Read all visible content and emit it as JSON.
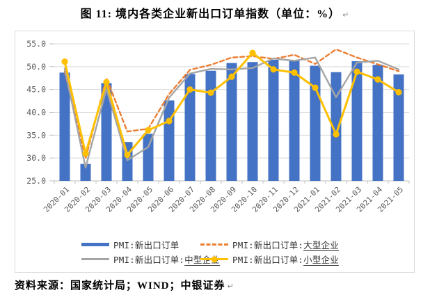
{
  "title": {
    "text": "图 11: 境内各类企业新出口订单指数（单位：%）",
    "pilcrow": "↵"
  },
  "footer": {
    "text": "资料来源：国家统计局；WIND；中银证券",
    "pilcrow": "↵"
  },
  "legend": {
    "items": [
      {
        "prefix": "PMI:新出口订单",
        "underlined": "",
        "swatch": "bar"
      },
      {
        "prefix": "PMI:新出口订单:",
        "underlined": "大型企业",
        "swatch": "dash"
      },
      {
        "prefix": "PMI:新出口订单:",
        "underlined": "中型企业",
        "swatch": "line"
      },
      {
        "prefix": "PMI:新出口订单:",
        "underlined": "小型企业",
        "swatch": "line-marker"
      }
    ]
  },
  "colors": {
    "bar": "#4472C4",
    "large": "#ED7D31",
    "medium": "#A5A5A5",
    "small": "#FFC000",
    "grid": "#D9D9D9",
    "axis": "#BFBFBF",
    "tick_label": "#595959",
    "frame_border": "#D9D9D9"
  },
  "chart_data": {
    "type": "bar",
    "title": "图 11: 境内各类企业新出口订单指数（单位：%）",
    "xlabel": "",
    "ylabel": "",
    "ylim": [
      25.0,
      55.0
    ],
    "ytick_step": 5.0,
    "ytick_labels": [
      "55.0",
      "50.0",
      "45.0",
      "40.0",
      "35.0",
      "30.0",
      "25.0"
    ],
    "grid": true,
    "legend_position": "bottom",
    "categories": [
      "2020-01",
      "2020-02",
      "2020-03",
      "2020-04",
      "2020-05",
      "2020-06",
      "2020-07",
      "2020-08",
      "2020-09",
      "2020-10",
      "2020-11",
      "2020-12",
      "2021-01",
      "2021-02",
      "2021-03",
      "2021-04",
      "2021-05"
    ],
    "series": [
      {
        "name": "PMI:新出口订单",
        "type": "bar",
        "color": "#4472C4",
        "values": [
          48.7,
          28.7,
          46.4,
          33.5,
          35.3,
          42.6,
          48.4,
          49.1,
          50.8,
          51.0,
          51.5,
          51.3,
          50.2,
          48.8,
          51.2,
          50.4,
          48.3
        ]
      },
      {
        "name": "PMI:新出口订单:大型企业",
        "type": "line",
        "style": "dashed",
        "color": "#ED7D31",
        "values": [
          49.0,
          29.9,
          47.5,
          35.8,
          36.4,
          44.0,
          49.3,
          50.4,
          52.0,
          52.3,
          51.7,
          52.6,
          50.6,
          53.8,
          52.0,
          50.5,
          49.0
        ]
      },
      {
        "name": "PMI:新出口订单:中型企业",
        "type": "line",
        "style": "solid",
        "color": "#A5A5A5",
        "values": [
          49.6,
          27.9,
          45.2,
          29.5,
          32.4,
          43.2,
          48.5,
          49.5,
          49.4,
          49.7,
          51.8,
          51.3,
          52.0,
          43.3,
          50.9,
          51.3,
          49.4
        ]
      },
      {
        "name": "PMI:新出口订单:小型企业",
        "type": "line",
        "style": "solid",
        "marker": "circle",
        "color": "#FFC000",
        "values": [
          51.1,
          31.0,
          46.6,
          30.7,
          36.1,
          38.1,
          45.0,
          44.3,
          47.8,
          53.0,
          49.4,
          48.7,
          45.4,
          35.2,
          48.9,
          47.2,
          44.4
        ]
      }
    ]
  }
}
